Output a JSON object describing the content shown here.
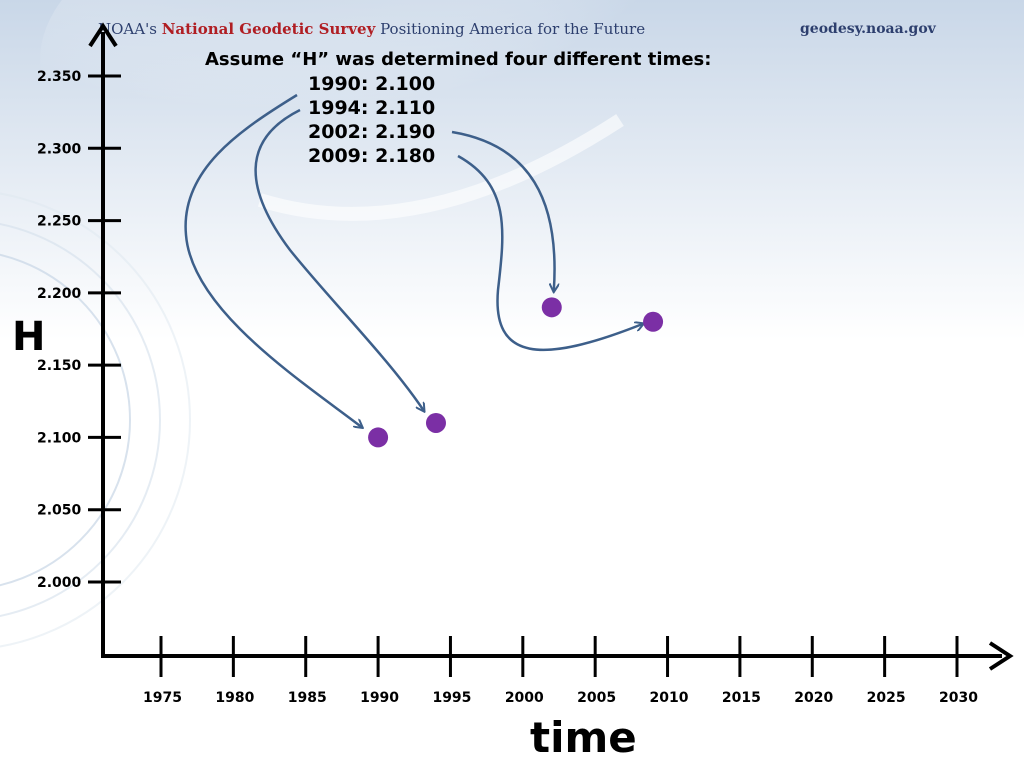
{
  "header": {
    "org_prefix": "NOAA's ",
    "org_emphasis": "National Geodetic Survey",
    "org_tagline": " Positioning America for the Future",
    "url": "geodesy.noaa.gov"
  },
  "annotation": {
    "title": "Assume “H” was determined four different times:",
    "measurements": [
      {
        "text": "1990:  2.100"
      },
      {
        "text": "1994:  2.110"
      },
      {
        "text": "2002:  2.190"
      },
      {
        "text": "2009:  2.180"
      }
    ]
  },
  "colors": {
    "point": "#7b2fa5",
    "arrow": "#3d5f8a",
    "axis": "#000000",
    "header_text": "#2d3f6e",
    "header_emphasis": "#b01e23"
  },
  "chart_data": {
    "type": "scatter",
    "xlabel": "time",
    "ylabel": "H",
    "x_ticks": [
      1975,
      1980,
      1985,
      1990,
      1995,
      2000,
      2005,
      2010,
      2015,
      2020,
      2025,
      2030
    ],
    "y_ticks": [
      "2.000",
      "2.050",
      "2.100",
      "2.150",
      "2.200",
      "2.250",
      "2.300",
      "2.350"
    ],
    "points": [
      {
        "x": 1990,
        "y": 2.1
      },
      {
        "x": 1994,
        "y": 2.11
      },
      {
        "x": 2002,
        "y": 2.19
      },
      {
        "x": 2009,
        "y": 2.18
      }
    ],
    "grid": false
  }
}
